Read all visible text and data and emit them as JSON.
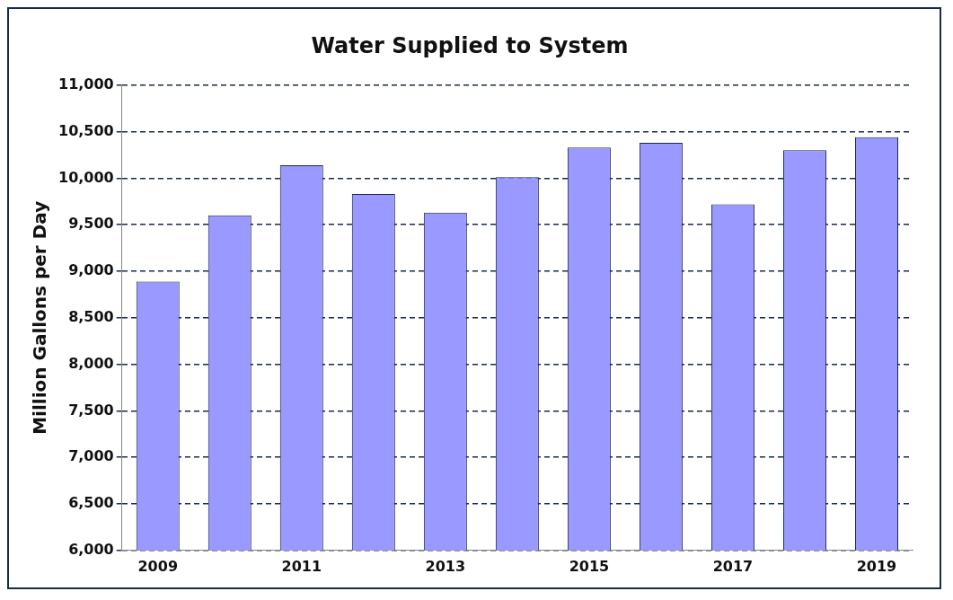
{
  "chart_data": {
    "type": "bar",
    "title": "Water Supplied to System",
    "ylabel": "Million Gallons per Day",
    "categories": [
      "2009",
      null,
      "2011",
      null,
      "2013",
      null,
      "2015",
      null,
      "2017",
      null,
      "2019"
    ],
    "values": [
      8890,
      9600,
      10140,
      9830,
      9630,
      10010,
      10330,
      10380,
      9720,
      10300,
      10440
    ],
    "color": "#9999ff",
    "ylim": [
      6000,
      11000
    ],
    "yticks": [
      {
        "value": 6000,
        "label": "6,000"
      },
      {
        "value": 6500,
        "label": "6,500"
      },
      {
        "value": 7000,
        "label": "7,000"
      },
      {
        "value": 7500,
        "label": "7,500"
      },
      {
        "value": 8000,
        "label": "8,000"
      },
      {
        "value": 8500,
        "label": "8,500"
      },
      {
        "value": 9000,
        "label": "9,000"
      },
      {
        "value": 9500,
        "label": "9,500"
      },
      {
        "value": 10000,
        "label": "10,000"
      },
      {
        "value": 10500,
        "label": "10,500"
      },
      {
        "value": 11000,
        "label": "11,000"
      }
    ],
    "grid": "y"
  }
}
